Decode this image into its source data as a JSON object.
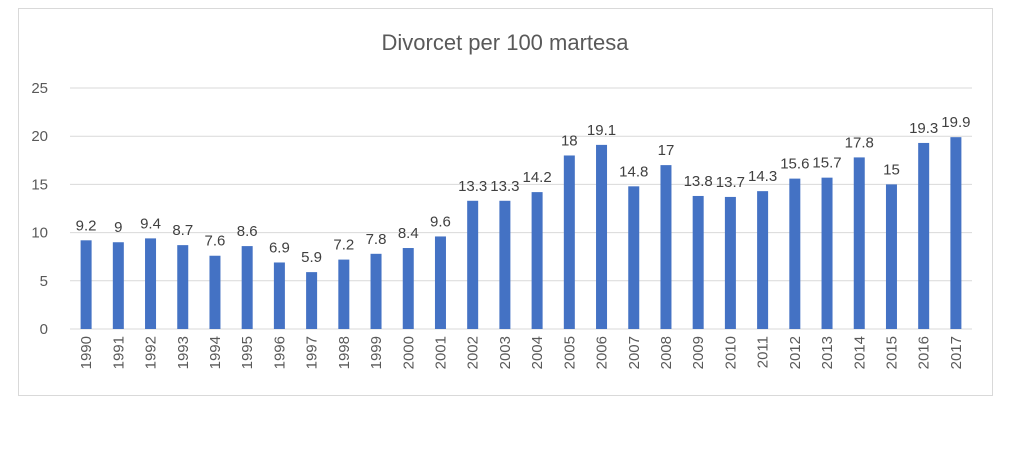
{
  "chart_data": {
    "type": "bar",
    "title": "Divorcet per 100 martesa",
    "xlabel": "",
    "ylabel": "",
    "ylim": [
      0,
      25
    ],
    "yticks": [
      0,
      5,
      10,
      15,
      20,
      25
    ],
    "grid": true,
    "legend": "none",
    "bar_color": "#4472C4",
    "categories": [
      "1990",
      "1991",
      "1992",
      "1993",
      "1994",
      "1995",
      "1996",
      "1997",
      "1998",
      "1999",
      "2000",
      "2001",
      "2002",
      "2003",
      "2004",
      "2005",
      "2006",
      "2007",
      "2008",
      "2009",
      "2010",
      "2011",
      "2012",
      "2013",
      "2014",
      "2015",
      "2016",
      "2017"
    ],
    "values": [
      9.2,
      9,
      9.4,
      8.7,
      7.6,
      8.6,
      6.9,
      5.9,
      7.2,
      7.8,
      8.4,
      9.6,
      13.3,
      13.3,
      14.2,
      18,
      19.1,
      14.8,
      17,
      13.8,
      13.7,
      14.3,
      15.6,
      15.7,
      17.8,
      15,
      19.3,
      19.9
    ]
  }
}
